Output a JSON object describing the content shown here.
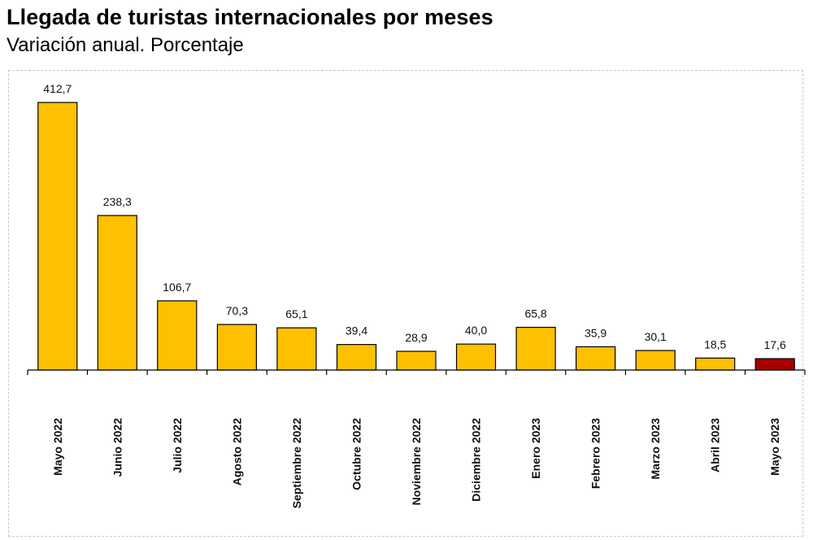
{
  "chart_data": {
    "type": "bar",
    "title": "Llegada de turistas internacionales por meses",
    "subtitle": "Variación anual. Porcentaje",
    "categories": [
      "Mayo 2022",
      "Junio 2022",
      "Julio 2022",
      "Agosto 2022",
      "Septiembre 2022",
      "Octubre 2022",
      "Noviembre 2022",
      "Diciembre 2022",
      "Enero 2023",
      "Febrero 2023",
      "Marzo 2023",
      "Abril 2023",
      "Mayo 2023"
    ],
    "values": [
      412.7,
      238.3,
      106.7,
      70.3,
      65.1,
      39.4,
      28.9,
      40.0,
      65.8,
      35.9,
      30.1,
      18.5,
      17.6
    ],
    "value_labels": [
      "412,7",
      "238,3",
      "106,7",
      "70,3",
      "65,1",
      "39,4",
      "28,9",
      "40,0",
      "65,8",
      "35,9",
      "30,1",
      "18,5",
      "17,6"
    ],
    "colors": {
      "bar": "#FFC000",
      "highlight": "#A50000",
      "outline": "#000000"
    },
    "highlight_index": 12,
    "ylim": [
      0,
      412.7
    ],
    "grid": false,
    "legend": "none"
  }
}
